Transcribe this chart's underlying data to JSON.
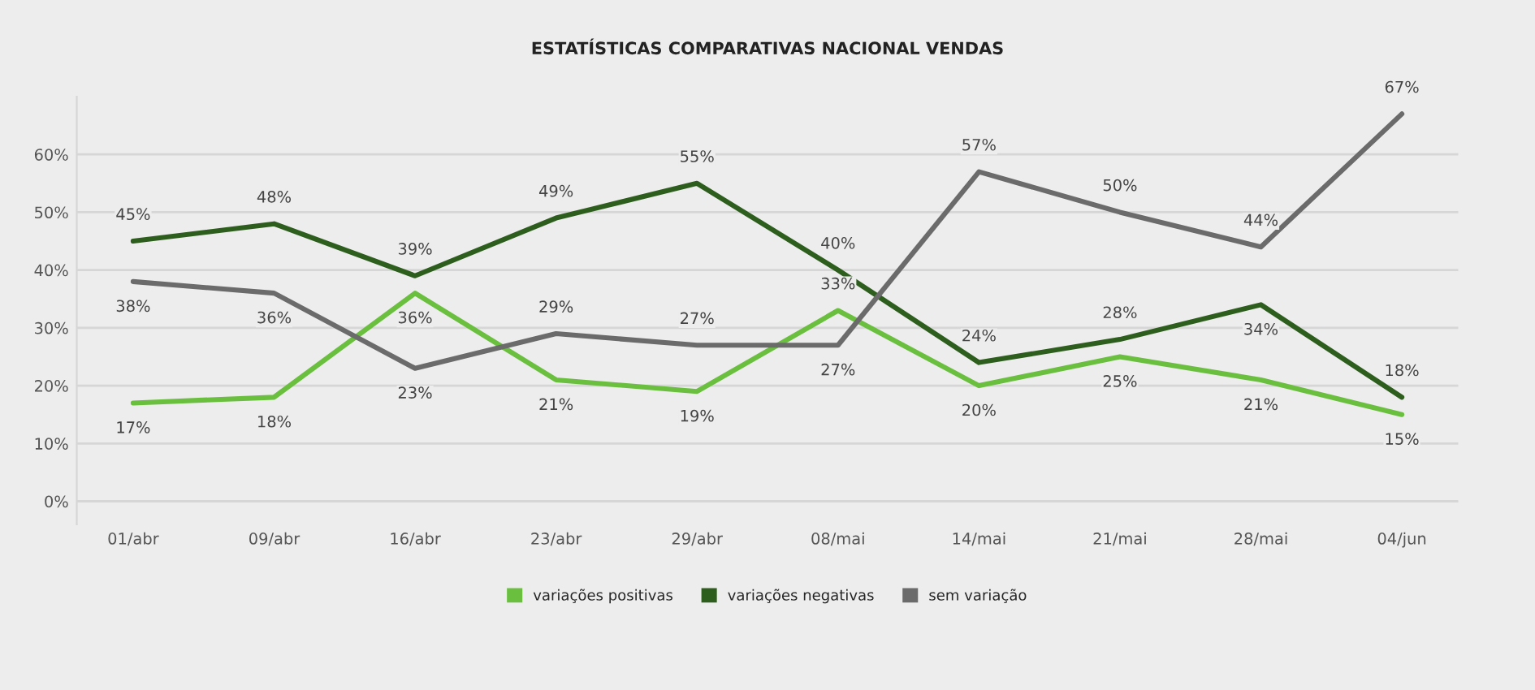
{
  "chart_data": {
    "type": "line",
    "title": "ESTATÍSTICAS COMPARATIVAS NACIONAL VENDAS",
    "categories": [
      "01/abr",
      "09/abr",
      "16/abr",
      "23/abr",
      "29/abr",
      "08/mai",
      "14/mai",
      "21/mai",
      "28/mai",
      "04/jun"
    ],
    "series": [
      {
        "name": "variações positivas",
        "color": "#6abf3f",
        "values": [
          17,
          18,
          36,
          21,
          19,
          33,
          20,
          25,
          21,
          15
        ],
        "value_labels": [
          "17%",
          "18%",
          "36%",
          "21%",
          "19%",
          "33%",
          "20%",
          "25%",
          "21%",
          "15%"
        ]
      },
      {
        "name": "variações negativas",
        "color": "#2e5e1e",
        "values": [
          45,
          48,
          39,
          49,
          55,
          40,
          24,
          28,
          34,
          18
        ],
        "value_labels": [
          "45%",
          "48%",
          "39%",
          "49%",
          "55%",
          "40%",
          "24%",
          "28%",
          "34%",
          "18%"
        ]
      },
      {
        "name": "sem variação",
        "color": "#6b6b6b",
        "values": [
          38,
          36,
          23,
          29,
          27,
          27,
          57,
          50,
          44,
          67
        ],
        "value_labels": [
          "38%",
          "36%",
          "23%",
          "29%",
          "27%",
          "27%",
          "57%",
          "50%",
          "44%",
          "67%"
        ]
      }
    ],
    "ylim": [
      -4,
      70
    ],
    "yticks": [
      {
        "value": 0,
        "label": "0%"
      },
      {
        "value": 10,
        "label": "10%"
      },
      {
        "value": 20,
        "label": "20%"
      },
      {
        "value": 30,
        "label": "30%"
      },
      {
        "value": 40,
        "label": "40%"
      },
      {
        "value": 50,
        "label": "50%"
      },
      {
        "value": 60,
        "label": "60%"
      }
    ],
    "grid": "y",
    "legend": "bottom",
    "marker": "none",
    "line_style": "solid"
  }
}
